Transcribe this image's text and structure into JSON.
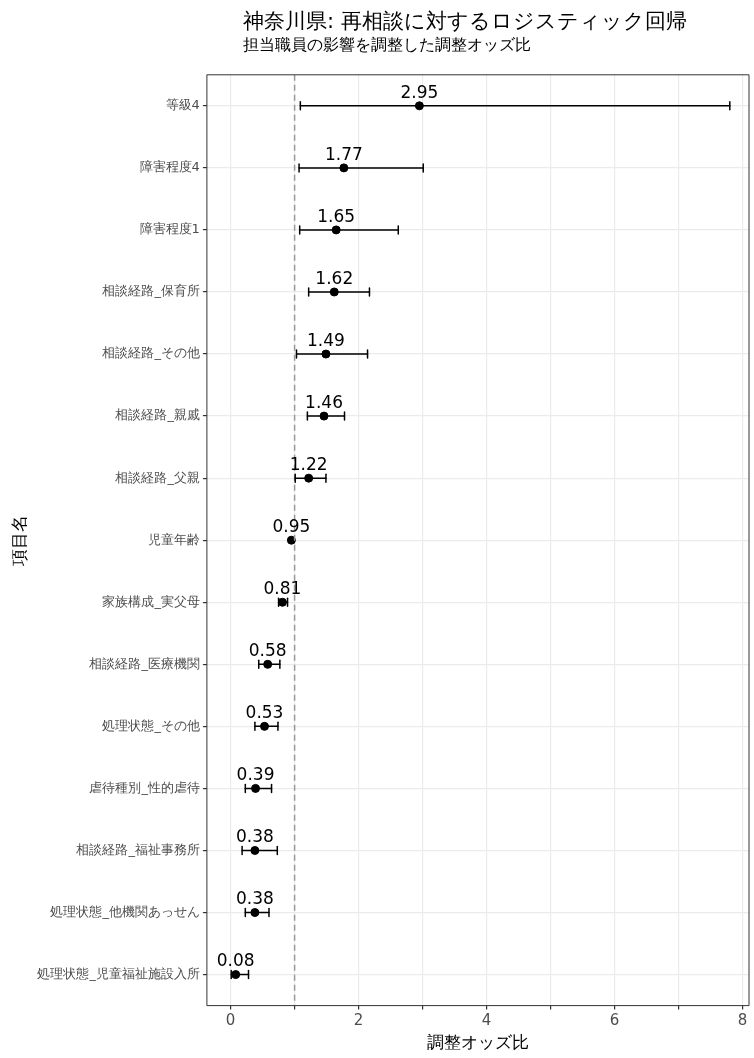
{
  "chart_data": {
    "type": "scatter",
    "title": "神奈川県: 再相談に対するロジスティック回帰",
    "subtitle": "担当職員の影響を調整した調整オッズ比",
    "xlabel": "調整オッズ比",
    "ylabel": "項目名",
    "orientation": "horizontal",
    "categories": [
      "等級4",
      "障害程度4",
      "障害程度1",
      "相談経路_保育所",
      "相談経路_その他",
      "相談経路_親戚",
      "相談経路_父親",
      "児童年齢",
      "家族構成_実父母",
      "相談経路_医療機関",
      "処理状態_その他",
      "虐待種別_性的虐待",
      "相談経路_福祉事務所",
      "処理状態_他機関あっせん",
      "処理状態_児童福祉施設入所"
    ],
    "values": [
      2.95,
      1.77,
      1.65,
      1.62,
      1.49,
      1.46,
      1.22,
      0.95,
      0.81,
      0.58,
      0.53,
      0.39,
      0.38,
      0.38,
      0.08
    ],
    "errors": [
      [
        1.09,
        7.8
      ],
      [
        1.07,
        3.01
      ],
      [
        1.08,
        2.62
      ],
      [
        1.22,
        2.17
      ],
      [
        1.03,
        2.14
      ],
      [
        1.2,
        1.78
      ],
      [
        1.01,
        1.49
      ],
      null,
      [
        0.75,
        0.89
      ],
      [
        0.44,
        0.77
      ],
      [
        0.38,
        0.74
      ],
      [
        0.23,
        0.64
      ],
      [
        0.18,
        0.73
      ],
      [
        0.23,
        0.6
      ],
      [
        0.01,
        0.28
      ]
    ],
    "color": "#000000",
    "marker": "circle",
    "data_labels": true,
    "xlim": [
      -0.37,
      8.1
    ],
    "xticks": [
      0,
      {
        "value": 1,
        "label": null
      },
      2,
      {
        "value": 3,
        "label": null
      },
      4,
      {
        "value": 5,
        "label": null
      },
      6,
      {
        "value": 7,
        "label": null
      },
      8
    ],
    "grid": true,
    "legend": false,
    "ref_lines": [
      {
        "axis": "x",
        "value": 1,
        "color": "#999999",
        "line_style": "dashed"
      }
    ]
  }
}
